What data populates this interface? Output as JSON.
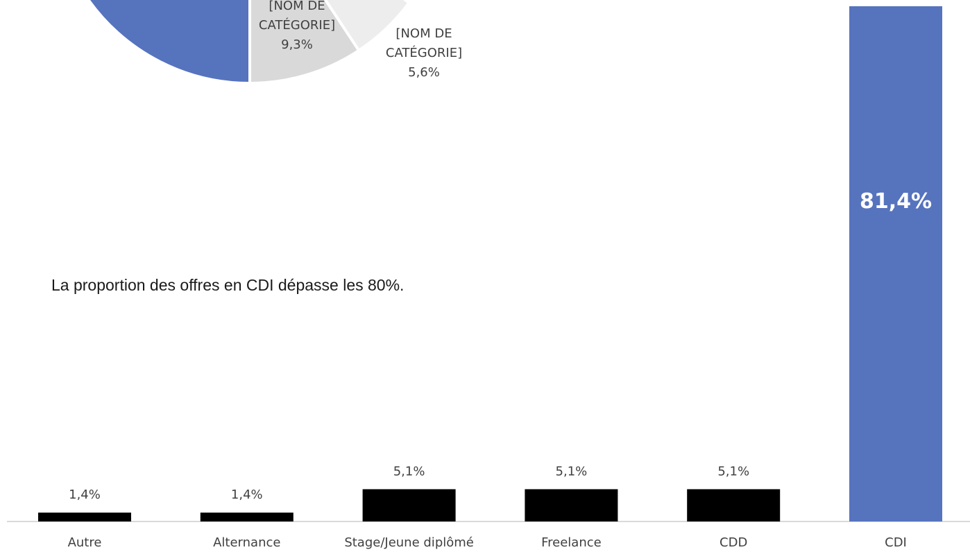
{
  "caption": "La proportion des offres en CDI dépasse les 80%.",
  "colors": {
    "pie_main": "#5673BE",
    "pie_slice_2": "#D9D9D9",
    "pie_slice_3": "#EDEDED",
    "bar_default": "#000000",
    "bar_highlight": "#5673BE",
    "axis": "#D9D9D9",
    "text": "#404040",
    "highlight_label": "#FFFFFF"
  },
  "chart_data": [
    {
      "type": "pie",
      "partial": true,
      "slices": [
        {
          "label": "[NOM DE CATÉGORIE]",
          "label_lines": [
            "[NOM DE",
            "CATÉGORIE]"
          ],
          "value_label": "9,3%",
          "value": 9.3
        },
        {
          "label": "[NOM DE CATÉGORIE]",
          "label_lines": [
            "[NOM DE",
            "CATÉGORIE]"
          ],
          "value_label": "5,6%",
          "value": 5.6
        }
      ]
    },
    {
      "type": "bar",
      "categories": [
        "Autre",
        "Alternance",
        "Stage/Jeune diplômé",
        "Freelance",
        "CDD",
        "CDI"
      ],
      "values": [
        1.4,
        1.4,
        5.1,
        5.1,
        5.1,
        81.4
      ],
      "value_labels": [
        "1,4%",
        "1,4%",
        "5,1%",
        "5,1%",
        "5,1%",
        "81,4%"
      ],
      "highlight": "CDI",
      "ylim": [
        0,
        81.4
      ]
    }
  ]
}
